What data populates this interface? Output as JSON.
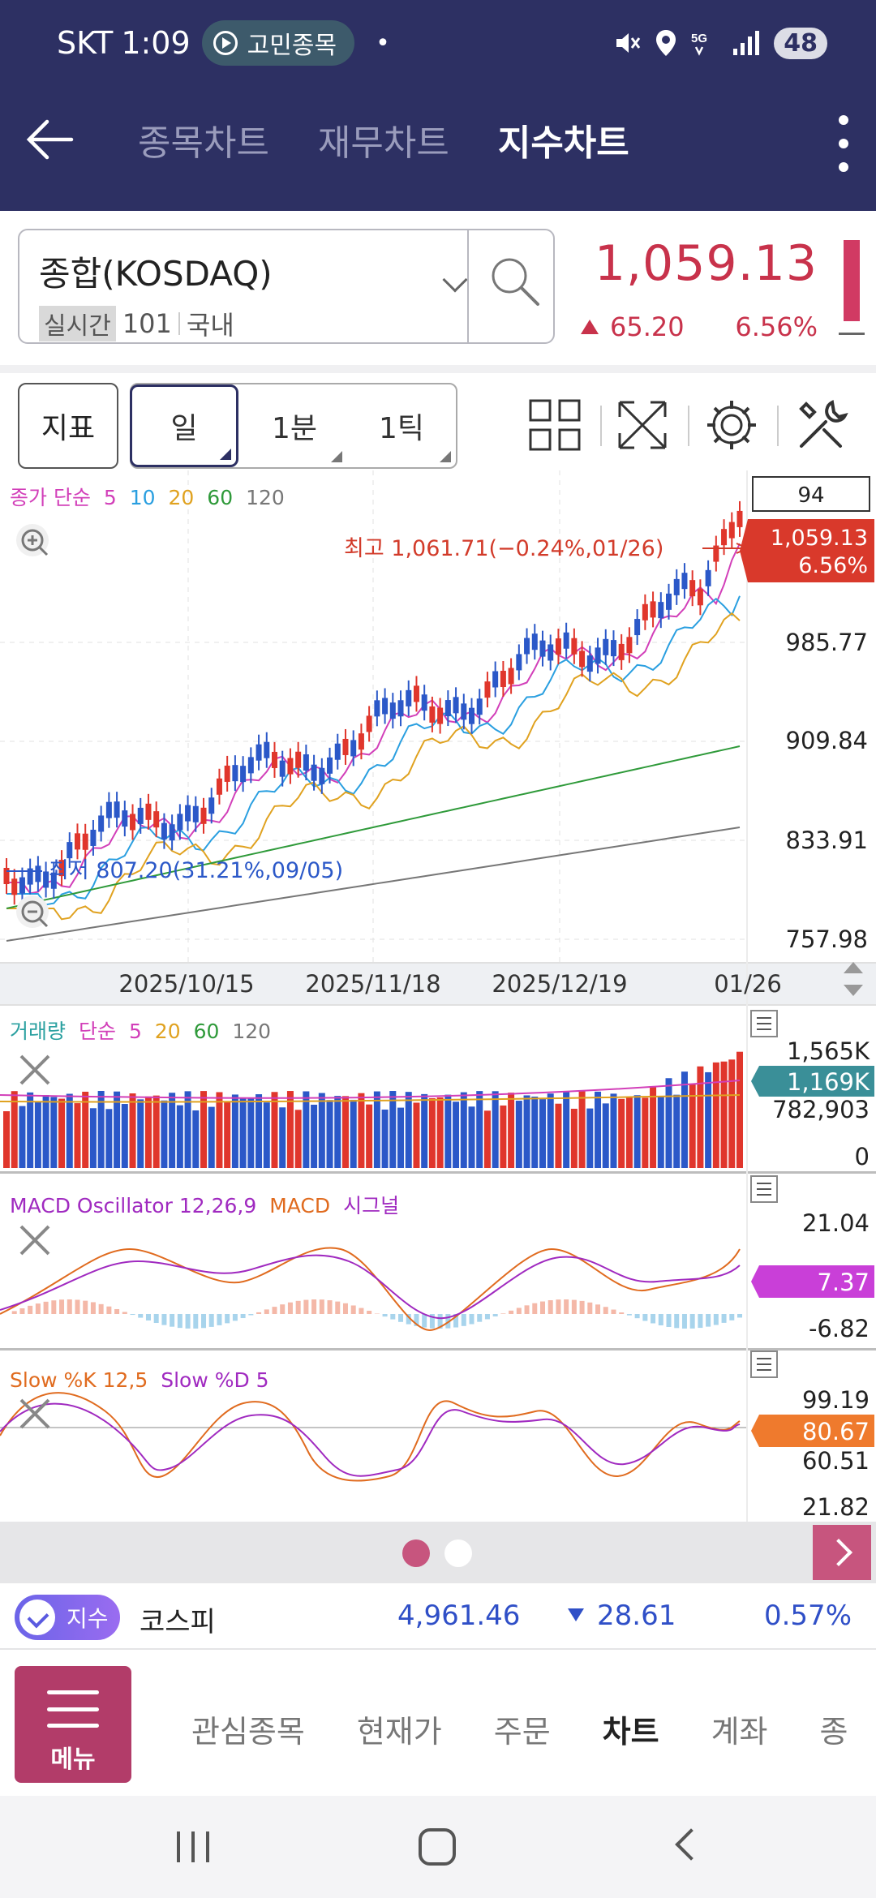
{
  "status": {
    "carrier": "SKT",
    "time": "1:09",
    "pill": "고민종목",
    "dot": "•",
    "battery": "48"
  },
  "nav": {
    "tabs": [
      "종목차트",
      "재무차트",
      "지수차트"
    ],
    "active_tab": 2
  },
  "symbol": {
    "name": "종합(KOSDAQ)",
    "tag": "실시간",
    "code": "101",
    "market": "국내",
    "price": "1,059.13",
    "change": "65.20",
    "change_pct": "6.56%"
  },
  "toolbar": {
    "indicator_label": "지표",
    "periods": [
      "일",
      "1분",
      "1틱"
    ],
    "active_period": 0
  },
  "chart": {
    "candle_count": "94",
    "price_tag": "1,059.13",
    "price_tag_pct": "6.56%",
    "high_annotation": "최고 1,061.71(−0.24%,01/26)",
    "low_annotation": "최저 807.20(31.21%,09/05)",
    "legend_price": {
      "prefix": "종가 단순",
      "periods": [
        "5",
        "10",
        "20",
        "60",
        "120"
      ]
    },
    "legend_volume": {
      "prefix": "거래량",
      "kind": "단순",
      "periods": [
        "5",
        "20",
        "60",
        "120"
      ]
    },
    "legend_macd": {
      "a": "MACD Oscillator 12,26,9",
      "b": "MACD",
      "c": "시그널"
    },
    "legend_slow": {
      "a": "Slow %K 12,5",
      "b": "Slow %D 5"
    },
    "price_axis": [
      "985.77",
      "909.84",
      "833.91",
      "757.98"
    ],
    "date_axis": [
      "2025/10/15",
      "2025/11/18",
      "2025/12/19",
      "01/26"
    ],
    "volume_axis": [
      "1,565K",
      "782,903",
      "0"
    ],
    "volume_tag": "1,169K",
    "macd_axis": [
      "21.04",
      "-6.82"
    ],
    "macd_tag": "7.37",
    "slow_axis": [
      "99.19",
      "60.51",
      "21.82"
    ],
    "slow_tag": "80.67",
    "colors": {
      "up": "#e0362c",
      "down": "#2b58c8",
      "ma5": "#d23fb9",
      "ma10": "#2a9fe0",
      "ma20": "#e0a220",
      "ma60": "#2f9a3a",
      "ma120": "#777777",
      "accent": "#b23c69",
      "header": "#2d3063"
    }
  },
  "ticker": {
    "badge": "지수",
    "name": "코스피",
    "value": "4,961.46",
    "change": "28.61",
    "pct": "0.57%"
  },
  "menu": {
    "button_label": "메뉴",
    "items": [
      "관심종목",
      "현재가",
      "주문",
      "차트",
      "계좌",
      "종"
    ],
    "active": 3
  }
}
